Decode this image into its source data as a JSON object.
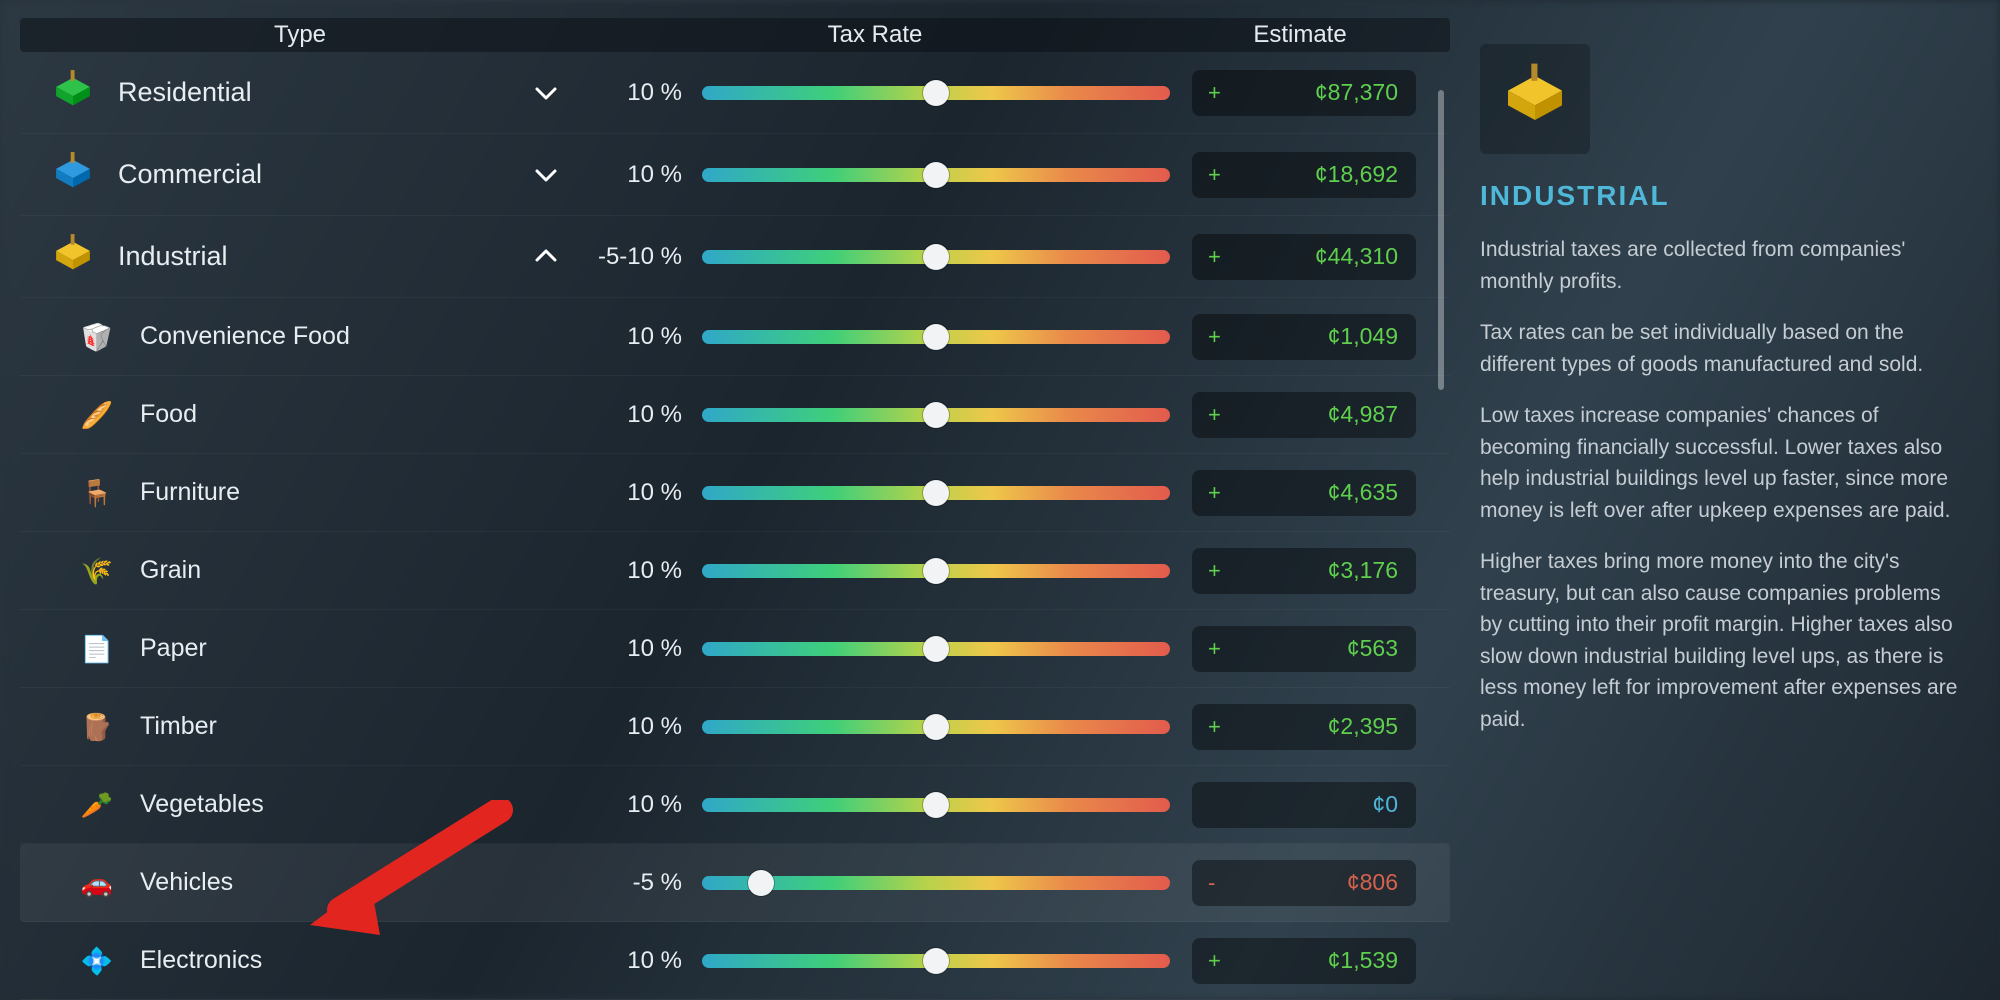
{
  "colors": {
    "positive": "#5fcf4e",
    "neutral": "#4fb7d8",
    "negative": "#d5624d",
    "slider_gradient": [
      "#2fa8c8",
      "#3fcf7a",
      "#b7d24a",
      "#e98a4a",
      "#e25b4d"
    ],
    "title_accent": "#4fb7d8"
  },
  "header": {
    "type": "Type",
    "rate": "Tax Rate",
    "estimate": "Estimate"
  },
  "slider": {
    "min": -10,
    "max": 30
  },
  "rows": [
    {
      "id": "residential",
      "kind": "main",
      "label": "Residential",
      "icon": "zone-green",
      "expand": "down",
      "rate_text": "10 %",
      "rate_value": 10,
      "sign": "+",
      "estimate": "¢87,370",
      "tone": "positive"
    },
    {
      "id": "commercial",
      "kind": "main",
      "label": "Commercial",
      "icon": "zone-blue",
      "expand": "down",
      "rate_text": "10 %",
      "rate_value": 10,
      "sign": "+",
      "estimate": "¢18,692",
      "tone": "positive"
    },
    {
      "id": "industrial",
      "kind": "main",
      "label": "Industrial",
      "icon": "zone-yellow",
      "expand": "up",
      "rate_text": "-5-10 %",
      "rate_value": 10,
      "sign": "+",
      "estimate": "¢44,310",
      "tone": "positive"
    },
    {
      "id": "convenience-food",
      "kind": "sub",
      "label": "Convenience Food",
      "icon": "🥡",
      "rate_text": "10 %",
      "rate_value": 10,
      "sign": "+",
      "estimate": "¢1,049",
      "tone": "positive"
    },
    {
      "id": "food",
      "kind": "sub",
      "label": "Food",
      "icon": "🥖",
      "rate_text": "10 %",
      "rate_value": 10,
      "sign": "+",
      "estimate": "¢4,987",
      "tone": "positive"
    },
    {
      "id": "furniture",
      "kind": "sub",
      "label": "Furniture",
      "icon": "🪑",
      "rate_text": "10 %",
      "rate_value": 10,
      "sign": "+",
      "estimate": "¢4,635",
      "tone": "positive"
    },
    {
      "id": "grain",
      "kind": "sub",
      "label": "Grain",
      "icon": "🌾",
      "rate_text": "10 %",
      "rate_value": 10,
      "sign": "+",
      "estimate": "¢3,176",
      "tone": "positive"
    },
    {
      "id": "paper",
      "kind": "sub",
      "label": "Paper",
      "icon": "📄",
      "rate_text": "10 %",
      "rate_value": 10,
      "sign": "+",
      "estimate": "¢563",
      "tone": "positive"
    },
    {
      "id": "timber",
      "kind": "sub",
      "label": "Timber",
      "icon": "🪵",
      "rate_text": "10 %",
      "rate_value": 10,
      "sign": "+",
      "estimate": "¢2,395",
      "tone": "positive"
    },
    {
      "id": "vegetables",
      "kind": "sub",
      "label": "Vegetables",
      "icon": "🥕",
      "rate_text": "10 %",
      "rate_value": 10,
      "sign": "",
      "estimate": "¢0",
      "tone": "neutral"
    },
    {
      "id": "vehicles",
      "kind": "sub",
      "label": "Vehicles",
      "icon": "🚗",
      "rate_text": "-5 %",
      "rate_value": -5,
      "sign": "-",
      "estimate": "¢806",
      "tone": "negative",
      "highlight": true
    },
    {
      "id": "electronics",
      "kind": "sub",
      "label": "Electronics",
      "icon": "💠",
      "rate_text": "10 %",
      "rate_value": 10,
      "sign": "+",
      "estimate": "¢1,539",
      "tone": "positive"
    }
  ],
  "info": {
    "title": "INDUSTRIAL",
    "icon": "zone-yellow",
    "paragraphs": [
      "Industrial taxes are collected from companies' monthly profits.",
      "Tax rates can be set individually based on the different types of goods manufactured and sold.",
      "Low taxes increase companies' chances of becoming financially successful. Lower taxes also help industrial buildings level up faster, since more money is left over after upkeep expenses are paid.",
      "Higher taxes bring more money into the city's treasury, but can also cause companies problems by cutting into their profit margin. Higher taxes also slow down industrial building level ups, as there is less money left for improvement after expenses are paid."
    ]
  }
}
